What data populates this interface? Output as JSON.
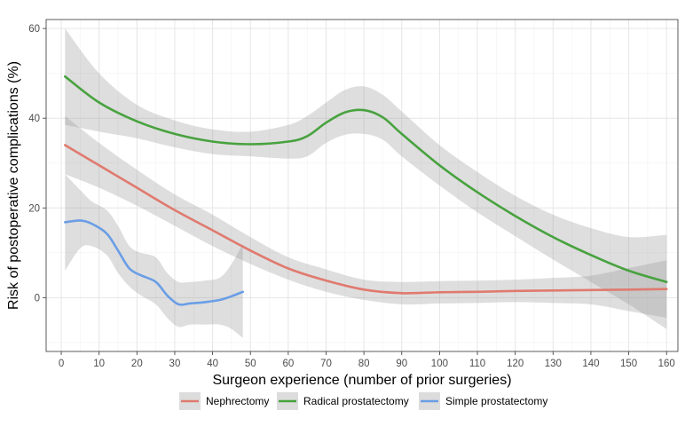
{
  "chart_data": {
    "type": "line",
    "title": "",
    "xlabel": "Surgeon experience (number of prior surgeries)",
    "ylabel": "Risk of postoperative complications (%)",
    "xlim": [
      -4,
      163
    ],
    "ylim": [
      -12,
      62
    ],
    "x_ticks": [
      0,
      10,
      20,
      30,
      40,
      50,
      60,
      70,
      80,
      90,
      100,
      110,
      120,
      130,
      140,
      150,
      160
    ],
    "y_ticks": [
      0,
      20,
      40,
      60
    ],
    "grid": true,
    "legend_position": "bottom",
    "series": [
      {
        "name": "Nephrectomy",
        "color": "#e07a6f",
        "points": [
          {
            "x": 1,
            "y": 34,
            "lo": 27.5,
            "hi": 40.5
          },
          {
            "x": 10,
            "y": 29.5,
            "lo": 24.5,
            "hi": 34.5
          },
          {
            "x": 20,
            "y": 24.5,
            "lo": 20.5,
            "hi": 28.5
          },
          {
            "x": 30,
            "y": 19.5,
            "lo": 16,
            "hi": 23
          },
          {
            "x": 40,
            "y": 15,
            "lo": 11.5,
            "hi": 18.5
          },
          {
            "x": 50,
            "y": 10.5,
            "lo": 7.5,
            "hi": 13.5
          },
          {
            "x": 60,
            "y": 6.5,
            "lo": 4,
            "hi": 9
          },
          {
            "x": 70,
            "y": 3.8,
            "lo": 1.3,
            "hi": 6.3
          },
          {
            "x": 80,
            "y": 1.8,
            "lo": -0.5,
            "hi": 4
          },
          {
            "x": 90,
            "y": 1,
            "lo": -1.5,
            "hi": 3.5
          },
          {
            "x": 100,
            "y": 1.2,
            "lo": -1.3,
            "hi": 3.7
          },
          {
            "x": 110,
            "y": 1.3,
            "lo": -1.2,
            "hi": 3.8
          },
          {
            "x": 120,
            "y": 1.5,
            "lo": -1,
            "hi": 4
          },
          {
            "x": 130,
            "y": 1.6,
            "lo": -1.2,
            "hi": 4.4
          },
          {
            "x": 140,
            "y": 1.7,
            "lo": -1.5,
            "hi": 4.9
          },
          {
            "x": 150,
            "y": 1.8,
            "lo": -3,
            "hi": 6.6
          },
          {
            "x": 160,
            "y": 1.9,
            "lo": -4.5,
            "hi": 8.3
          }
        ]
      },
      {
        "name": "Radical prostatectomy",
        "color": "#48a23f",
        "points": [
          {
            "x": 1,
            "y": 49.3,
            "lo": 38.5,
            "hi": 60
          },
          {
            "x": 10,
            "y": 43.5,
            "lo": 37,
            "hi": 50
          },
          {
            "x": 20,
            "y": 39.3,
            "lo": 35.5,
            "hi": 43
          },
          {
            "x": 30,
            "y": 36.5,
            "lo": 33.5,
            "hi": 39.5
          },
          {
            "x": 40,
            "y": 34.8,
            "lo": 32,
            "hi": 37.5
          },
          {
            "x": 50,
            "y": 34.2,
            "lo": 31.5,
            "hi": 37
          },
          {
            "x": 60,
            "y": 34.8,
            "lo": 31,
            "hi": 38.5
          },
          {
            "x": 65,
            "y": 36,
            "lo": 31.5,
            "hi": 40.5
          },
          {
            "x": 70,
            "y": 39,
            "lo": 34.5,
            "hi": 43.5
          },
          {
            "x": 75,
            "y": 41.3,
            "lo": 36.3,
            "hi": 46.3
          },
          {
            "x": 80,
            "y": 41.8,
            "lo": 36.5,
            "hi": 47.1
          },
          {
            "x": 85,
            "y": 40.2,
            "lo": 35.2,
            "hi": 45.2
          },
          {
            "x": 90,
            "y": 36.5,
            "lo": 31.5,
            "hi": 41.5
          },
          {
            "x": 100,
            "y": 29.5,
            "lo": 25,
            "hi": 34
          },
          {
            "x": 110,
            "y": 23.5,
            "lo": 19,
            "hi": 28
          },
          {
            "x": 120,
            "y": 18.2,
            "lo": 13.7,
            "hi": 22.7
          },
          {
            "x": 130,
            "y": 13.5,
            "lo": 8.5,
            "hi": 18.5
          },
          {
            "x": 140,
            "y": 9.5,
            "lo": 3.5,
            "hi": 15.5
          },
          {
            "x": 150,
            "y": 6,
            "lo": -1.5,
            "hi": 13.5
          },
          {
            "x": 160,
            "y": 3.5,
            "lo": -7,
            "hi": 14
          }
        ]
      },
      {
        "name": "Simple prostatectomy",
        "color": "#6a9ee6",
        "points": [
          {
            "x": 1,
            "y": 16.8,
            "lo": 6,
            "hi": 27.5
          },
          {
            "x": 5,
            "y": 17.2,
            "lo": 11,
            "hi": 24
          },
          {
            "x": 8,
            "y": 16.5,
            "lo": 11.5,
            "hi": 21.5
          },
          {
            "x": 12,
            "y": 14.3,
            "lo": 9.5,
            "hi": 19.5
          },
          {
            "x": 15,
            "y": 10.5,
            "lo": 5.5,
            "hi": 16
          },
          {
            "x": 18,
            "y": 6.5,
            "lo": 2.5,
            "hi": 11.5
          },
          {
            "x": 21,
            "y": 5,
            "lo": 0.5,
            "hi": 10
          },
          {
            "x": 25,
            "y": 3.5,
            "lo": -1.5,
            "hi": 9
          },
          {
            "x": 28,
            "y": 0.5,
            "lo": -4.5,
            "hi": 5.5
          },
          {
            "x": 31,
            "y": -1.5,
            "lo": -6.5,
            "hi": 3.5
          },
          {
            "x": 34,
            "y": -1.3,
            "lo": -6,
            "hi": 3.5
          },
          {
            "x": 38,
            "y": -1,
            "lo": -6,
            "hi": 3.8
          },
          {
            "x": 42,
            "y": -0.5,
            "lo": -6,
            "hi": 4.5
          },
          {
            "x": 45,
            "y": 0.3,
            "lo": -7,
            "hi": 7.5
          },
          {
            "x": 48,
            "y": 1.3,
            "lo": -9,
            "hi": 12
          }
        ]
      }
    ]
  }
}
